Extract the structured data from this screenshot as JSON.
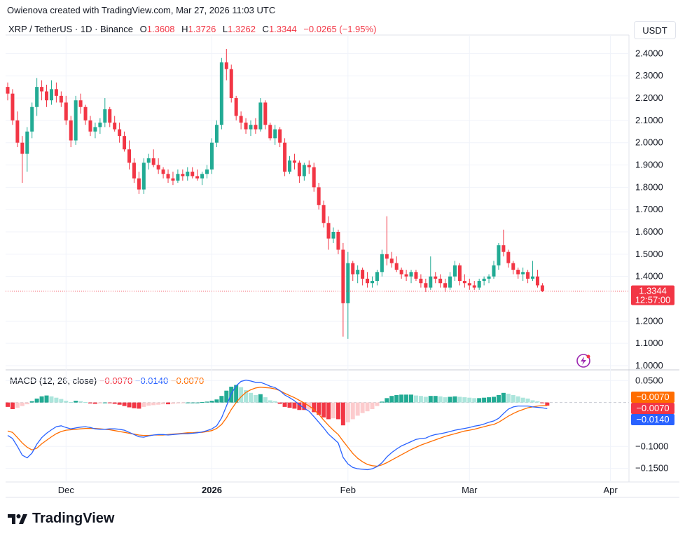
{
  "header": {
    "text": "Owienova created with TradingView.com, Mar 27, 2026 11:03 UTC"
  },
  "symbol": {
    "name": "XRP / TetherUS · 1D · Binance",
    "open_label": "O",
    "open": "1.3608",
    "high_label": "H",
    "high": "1.3726",
    "low_label": "L",
    "low": "1.3262",
    "close_label": "C",
    "close": "1.3344",
    "change": "−0.0265 (−1.95%)"
  },
  "currency": "USDT",
  "price_tag": {
    "price": "1.3344",
    "countdown": "12:57:00"
  },
  "macd_legend": {
    "name": "MACD (12, 26, close)",
    "hist": "−0.0070",
    "macd": "−0.0140",
    "signal": "−0.0070"
  },
  "macd_tags": {
    "signal": "−0.0070",
    "hist": "−0.0070",
    "macd": "−0.0140"
  },
  "brand": {
    "name": "TradingView"
  },
  "colors": {
    "up": "#22ab94",
    "down": "#f23645",
    "macd_line": "#2962ff",
    "signal_line": "#ff6d00",
    "hist_up_strong": "#22ab94",
    "hist_up_weak": "#ace5dc",
    "hist_down_strong": "#f23645",
    "hist_down_weak": "#fccbcd"
  },
  "chart_data": [
    {
      "type": "candlestick",
      "title": "XRP / TetherUS · 1D · Binance",
      "ylabel": "USDT",
      "ylim": [
        1.0,
        2.42
      ],
      "y_ticks": [
        "2.4000",
        "2.3000",
        "2.2000",
        "2.1000",
        "2.0000",
        "1.9000",
        "1.8000",
        "1.7000",
        "1.6000",
        "1.5000",
        "1.4000",
        "1.2000",
        "1.1000",
        "1.0000"
      ],
      "x_ticks": [
        "Dec",
        "2026",
        "Feb",
        "Mar",
        "Apr"
      ],
      "grid": true,
      "candles": [
        [
          2.25,
          2.27,
          2.19,
          2.22
        ],
        [
          2.22,
          2.24,
          2.08,
          2.1
        ],
        [
          2.1,
          2.14,
          1.98,
          2.0
        ],
        [
          2.0,
          2.03,
          1.82,
          1.95
        ],
        [
          1.95,
          2.07,
          1.87,
          2.05
        ],
        [
          2.05,
          2.18,
          2.02,
          2.16
        ],
        [
          2.16,
          2.29,
          2.12,
          2.25
        ],
        [
          2.25,
          2.28,
          2.19,
          2.23
        ],
        [
          2.23,
          2.26,
          2.16,
          2.19
        ],
        [
          2.19,
          2.28,
          2.17,
          2.24
        ],
        [
          2.24,
          2.27,
          2.18,
          2.21
        ],
        [
          2.21,
          2.23,
          2.16,
          2.18
        ],
        [
          2.18,
          2.21,
          2.08,
          2.1
        ],
        [
          2.1,
          2.12,
          1.98,
          2.01
        ],
        [
          2.01,
          2.21,
          1.99,
          2.19
        ],
        [
          2.19,
          2.22,
          2.13,
          2.16
        ],
        [
          2.16,
          2.17,
          2.08,
          2.1
        ],
        [
          2.1,
          2.12,
          2.03,
          2.05
        ],
        [
          2.05,
          2.09,
          2.02,
          2.07
        ],
        [
          2.07,
          2.11,
          2.04,
          2.09
        ],
        [
          2.09,
          2.2,
          2.07,
          2.15
        ],
        [
          2.15,
          2.16,
          2.07,
          2.09
        ],
        [
          2.09,
          2.12,
          2.05,
          2.06
        ],
        [
          2.06,
          2.09,
          2.0,
          2.03
        ],
        [
          2.03,
          2.05,
          1.96,
          1.97
        ],
        [
          1.97,
          2.01,
          1.88,
          1.91
        ],
        [
          1.91,
          1.93,
          1.82,
          1.84
        ],
        [
          1.84,
          1.87,
          1.77,
          1.79
        ],
        [
          1.79,
          1.93,
          1.77,
          1.91
        ],
        [
          1.91,
          1.95,
          1.88,
          1.93
        ],
        [
          1.93,
          1.97,
          1.89,
          1.9
        ],
        [
          1.9,
          1.93,
          1.86,
          1.88
        ],
        [
          1.88,
          1.89,
          1.84,
          1.86
        ],
        [
          1.86,
          1.88,
          1.82,
          1.84
        ],
        [
          1.84,
          1.87,
          1.81,
          1.83
        ],
        [
          1.83,
          1.88,
          1.82,
          1.86
        ],
        [
          1.86,
          1.88,
          1.83,
          1.85
        ],
        [
          1.85,
          1.89,
          1.83,
          1.87
        ],
        [
          1.87,
          1.89,
          1.84,
          1.85
        ],
        [
          1.85,
          1.88,
          1.83,
          1.84
        ],
        [
          1.84,
          1.87,
          1.81,
          1.86
        ],
        [
          1.86,
          1.9,
          1.84,
          1.88
        ],
        [
          1.88,
          2.02,
          1.86,
          2.0
        ],
        [
          2.0,
          2.1,
          1.98,
          2.08
        ],
        [
          2.08,
          2.38,
          2.06,
          2.36
        ],
        [
          2.36,
          2.42,
          2.28,
          2.33
        ],
        [
          2.33,
          2.35,
          2.18,
          2.2
        ],
        [
          2.2,
          2.21,
          2.1,
          2.12
        ],
        [
          2.12,
          2.14,
          2.06,
          2.09
        ],
        [
          2.09,
          2.11,
          2.04,
          2.06
        ],
        [
          2.06,
          2.1,
          2.03,
          2.08
        ],
        [
          2.08,
          2.11,
          2.04,
          2.06
        ],
        [
          2.06,
          2.2,
          2.05,
          2.18
        ],
        [
          2.18,
          2.19,
          2.06,
          2.08
        ],
        [
          2.08,
          2.09,
          2.01,
          2.02
        ],
        [
          2.02,
          2.08,
          1.99,
          2.06
        ],
        [
          2.06,
          2.07,
          1.98,
          2.0
        ],
        [
          2.0,
          2.02,
          1.85,
          1.87
        ],
        [
          1.87,
          1.94,
          1.86,
          1.92
        ],
        [
          1.92,
          1.95,
          1.88,
          1.91
        ],
        [
          1.91,
          1.92,
          1.82,
          1.85
        ],
        [
          1.85,
          1.91,
          1.83,
          1.9
        ],
        [
          1.9,
          1.92,
          1.86,
          1.89
        ],
        [
          1.89,
          1.91,
          1.78,
          1.8
        ],
        [
          1.8,
          1.82,
          1.7,
          1.72
        ],
        [
          1.72,
          1.74,
          1.62,
          1.64
        ],
        [
          1.64,
          1.67,
          1.52,
          1.57
        ],
        [
          1.57,
          1.62,
          1.55,
          1.6
        ],
        [
          1.6,
          1.61,
          1.5,
          1.52
        ],
        [
          1.52,
          1.55,
          1.13,
          1.28
        ],
        [
          1.28,
          1.51,
          1.12,
          1.46
        ],
        [
          1.46,
          1.47,
          1.38,
          1.41
        ],
        [
          1.41,
          1.45,
          1.37,
          1.43
        ],
        [
          1.43,
          1.44,
          1.36,
          1.39
        ],
        [
          1.39,
          1.42,
          1.35,
          1.37
        ],
        [
          1.37,
          1.4,
          1.35,
          1.38
        ],
        [
          1.38,
          1.43,
          1.36,
          1.42
        ],
        [
          1.42,
          1.52,
          1.4,
          1.5
        ],
        [
          1.5,
          1.67,
          1.45,
          1.48
        ],
        [
          1.48,
          1.51,
          1.44,
          1.46
        ],
        [
          1.46,
          1.49,
          1.42,
          1.43
        ],
        [
          1.43,
          1.44,
          1.39,
          1.41
        ],
        [
          1.41,
          1.43,
          1.38,
          1.4
        ],
        [
          1.4,
          1.43,
          1.37,
          1.42
        ],
        [
          1.42,
          1.43,
          1.38,
          1.39
        ],
        [
          1.39,
          1.41,
          1.35,
          1.37
        ],
        [
          1.37,
          1.39,
          1.33,
          1.35
        ],
        [
          1.35,
          1.49,
          1.34,
          1.4
        ],
        [
          1.4,
          1.42,
          1.37,
          1.39
        ],
        [
          1.39,
          1.41,
          1.35,
          1.37
        ],
        [
          1.37,
          1.39,
          1.33,
          1.35
        ],
        [
          1.35,
          1.42,
          1.34,
          1.4
        ],
        [
          1.4,
          1.47,
          1.38,
          1.45
        ],
        [
          1.45,
          1.46,
          1.36,
          1.38
        ],
        [
          1.38,
          1.41,
          1.35,
          1.37
        ],
        [
          1.37,
          1.39,
          1.34,
          1.36
        ],
        [
          1.36,
          1.38,
          1.34,
          1.35
        ],
        [
          1.35,
          1.39,
          1.34,
          1.38
        ],
        [
          1.38,
          1.4,
          1.36,
          1.39
        ],
        [
          1.39,
          1.41,
          1.37,
          1.4
        ],
        [
          1.4,
          1.47,
          1.39,
          1.45
        ],
        [
          1.45,
          1.55,
          1.43,
          1.54
        ],
        [
          1.54,
          1.61,
          1.49,
          1.51
        ],
        [
          1.51,
          1.52,
          1.44,
          1.46
        ],
        [
          1.46,
          1.47,
          1.41,
          1.43
        ],
        [
          1.43,
          1.44,
          1.39,
          1.41
        ],
        [
          1.41,
          1.44,
          1.38,
          1.42
        ],
        [
          1.42,
          1.43,
          1.37,
          1.39
        ],
        [
          1.39,
          1.47,
          1.38,
          1.4
        ],
        [
          1.4,
          1.43,
          1.35,
          1.36
        ],
        [
          1.36,
          1.37,
          1.33,
          1.3344
        ]
      ]
    },
    {
      "type": "line",
      "title": "MACD (12, 26, close)",
      "ylim": [
        -0.165,
        0.06
      ],
      "y_ticks": [
        "0.0500",
        "−0.1000",
        "−0.1500"
      ],
      "series": [
        {
          "name": "histogram",
          "values": [
            -0.01,
            -0.015,
            -0.012,
            -0.008,
            -0.004,
            0.003,
            0.009,
            0.014,
            0.016,
            0.014,
            0.011,
            0.008,
            0.004,
            0.001,
            0.004,
            0.003,
            0.001,
            -0.002,
            -0.003,
            -0.002,
            0.0,
            -0.001,
            -0.003,
            -0.005,
            -0.008,
            -0.011,
            -0.013,
            -0.014,
            -0.01,
            -0.007,
            -0.006,
            -0.005,
            -0.004,
            -0.004,
            -0.003,
            -0.002,
            -0.001,
            0.0,
            0.0,
            0.0,
            0.001,
            0.002,
            0.004,
            0.007,
            0.015,
            0.027,
            0.036,
            0.04,
            0.035,
            0.028,
            0.022,
            0.017,
            0.019,
            0.012,
            0.005,
            0.003,
            -0.003,
            -0.01,
            -0.012,
            -0.014,
            -0.017,
            -0.017,
            -0.016,
            -0.022,
            -0.028,
            -0.034,
            -0.038,
            -0.036,
            -0.038,
            -0.052,
            -0.045,
            -0.038,
            -0.03,
            -0.024,
            -0.02,
            -0.015,
            -0.008,
            0.002,
            0.01,
            0.015,
            0.017,
            0.018,
            0.018,
            0.018,
            0.016,
            0.015,
            0.013,
            0.015,
            0.015,
            0.014,
            0.012,
            0.013,
            0.014,
            0.013,
            0.012,
            0.011,
            0.01,
            0.01,
            0.011,
            0.012,
            0.013,
            0.017,
            0.022,
            0.02,
            0.017,
            0.014,
            0.011,
            0.009,
            0.005,
            0.003,
            -0.001,
            -0.007
          ]
        },
        {
          "name": "MACD",
          "values": [
            -0.075,
            -0.082,
            -0.1,
            -0.12,
            -0.126,
            -0.115,
            -0.095,
            -0.08,
            -0.07,
            -0.062,
            -0.055,
            -0.053,
            -0.057,
            -0.06,
            -0.058,
            -0.056,
            -0.055,
            -0.057,
            -0.06,
            -0.061,
            -0.061,
            -0.06,
            -0.06,
            -0.061,
            -0.063,
            -0.068,
            -0.073,
            -0.078,
            -0.079,
            -0.076,
            -0.074,
            -0.073,
            -0.073,
            -0.074,
            -0.073,
            -0.072,
            -0.071,
            -0.071,
            -0.07,
            -0.069,
            -0.067,
            -0.064,
            -0.06,
            -0.053,
            -0.035,
            -0.008,
            0.02,
            0.038,
            0.048,
            0.051,
            0.049,
            0.046,
            0.046,
            0.042,
            0.037,
            0.034,
            0.027,
            0.017,
            0.011,
            0.004,
            -0.005,
            -0.013,
            -0.02,
            -0.032,
            -0.045,
            -0.058,
            -0.072,
            -0.082,
            -0.092,
            -0.125,
            -0.14,
            -0.148,
            -0.151,
            -0.152,
            -0.153,
            -0.151,
            -0.146,
            -0.137,
            -0.124,
            -0.114,
            -0.106,
            -0.099,
            -0.094,
            -0.089,
            -0.084,
            -0.082,
            -0.081,
            -0.076,
            -0.073,
            -0.071,
            -0.069,
            -0.066,
            -0.063,
            -0.061,
            -0.059,
            -0.057,
            -0.054,
            -0.052,
            -0.049,
            -0.045,
            -0.042,
            -0.036,
            -0.025,
            -0.015,
            -0.01,
            -0.008,
            -0.008,
            -0.008,
            -0.01,
            -0.011,
            -0.012,
            -0.014
          ]
        },
        {
          "name": "Signal",
          "values": [
            -0.065,
            -0.068,
            -0.08,
            -0.092,
            -0.102,
            -0.108,
            -0.104,
            -0.094,
            -0.086,
            -0.078,
            -0.071,
            -0.066,
            -0.063,
            -0.062,
            -0.061,
            -0.06,
            -0.059,
            -0.059,
            -0.059,
            -0.06,
            -0.061,
            -0.062,
            -0.064,
            -0.066,
            -0.068,
            -0.07,
            -0.072,
            -0.074,
            -0.075,
            -0.075,
            -0.074,
            -0.074,
            -0.074,
            -0.073,
            -0.072,
            -0.071,
            -0.07,
            -0.069,
            -0.069,
            -0.068,
            -0.068,
            -0.066,
            -0.064,
            -0.059,
            -0.05,
            -0.035,
            -0.016,
            0.0,
            0.013,
            0.023,
            0.029,
            0.033,
            0.035,
            0.034,
            0.033,
            0.031,
            0.027,
            0.021,
            0.016,
            0.011,
            0.005,
            -0.001,
            -0.008,
            -0.016,
            -0.027,
            -0.04,
            -0.052,
            -0.063,
            -0.073,
            -0.088,
            -0.102,
            -0.116,
            -0.127,
            -0.135,
            -0.141,
            -0.144,
            -0.145,
            -0.142,
            -0.137,
            -0.131,
            -0.125,
            -0.119,
            -0.113,
            -0.107,
            -0.102,
            -0.097,
            -0.093,
            -0.089,
            -0.085,
            -0.081,
            -0.077,
            -0.074,
            -0.071,
            -0.068,
            -0.065,
            -0.063,
            -0.061,
            -0.058,
            -0.055,
            -0.052,
            -0.05,
            -0.045,
            -0.038,
            -0.031,
            -0.025,
            -0.02,
            -0.016,
            -0.012,
            -0.01,
            -0.008,
            -0.007,
            -0.007
          ]
        }
      ]
    }
  ]
}
